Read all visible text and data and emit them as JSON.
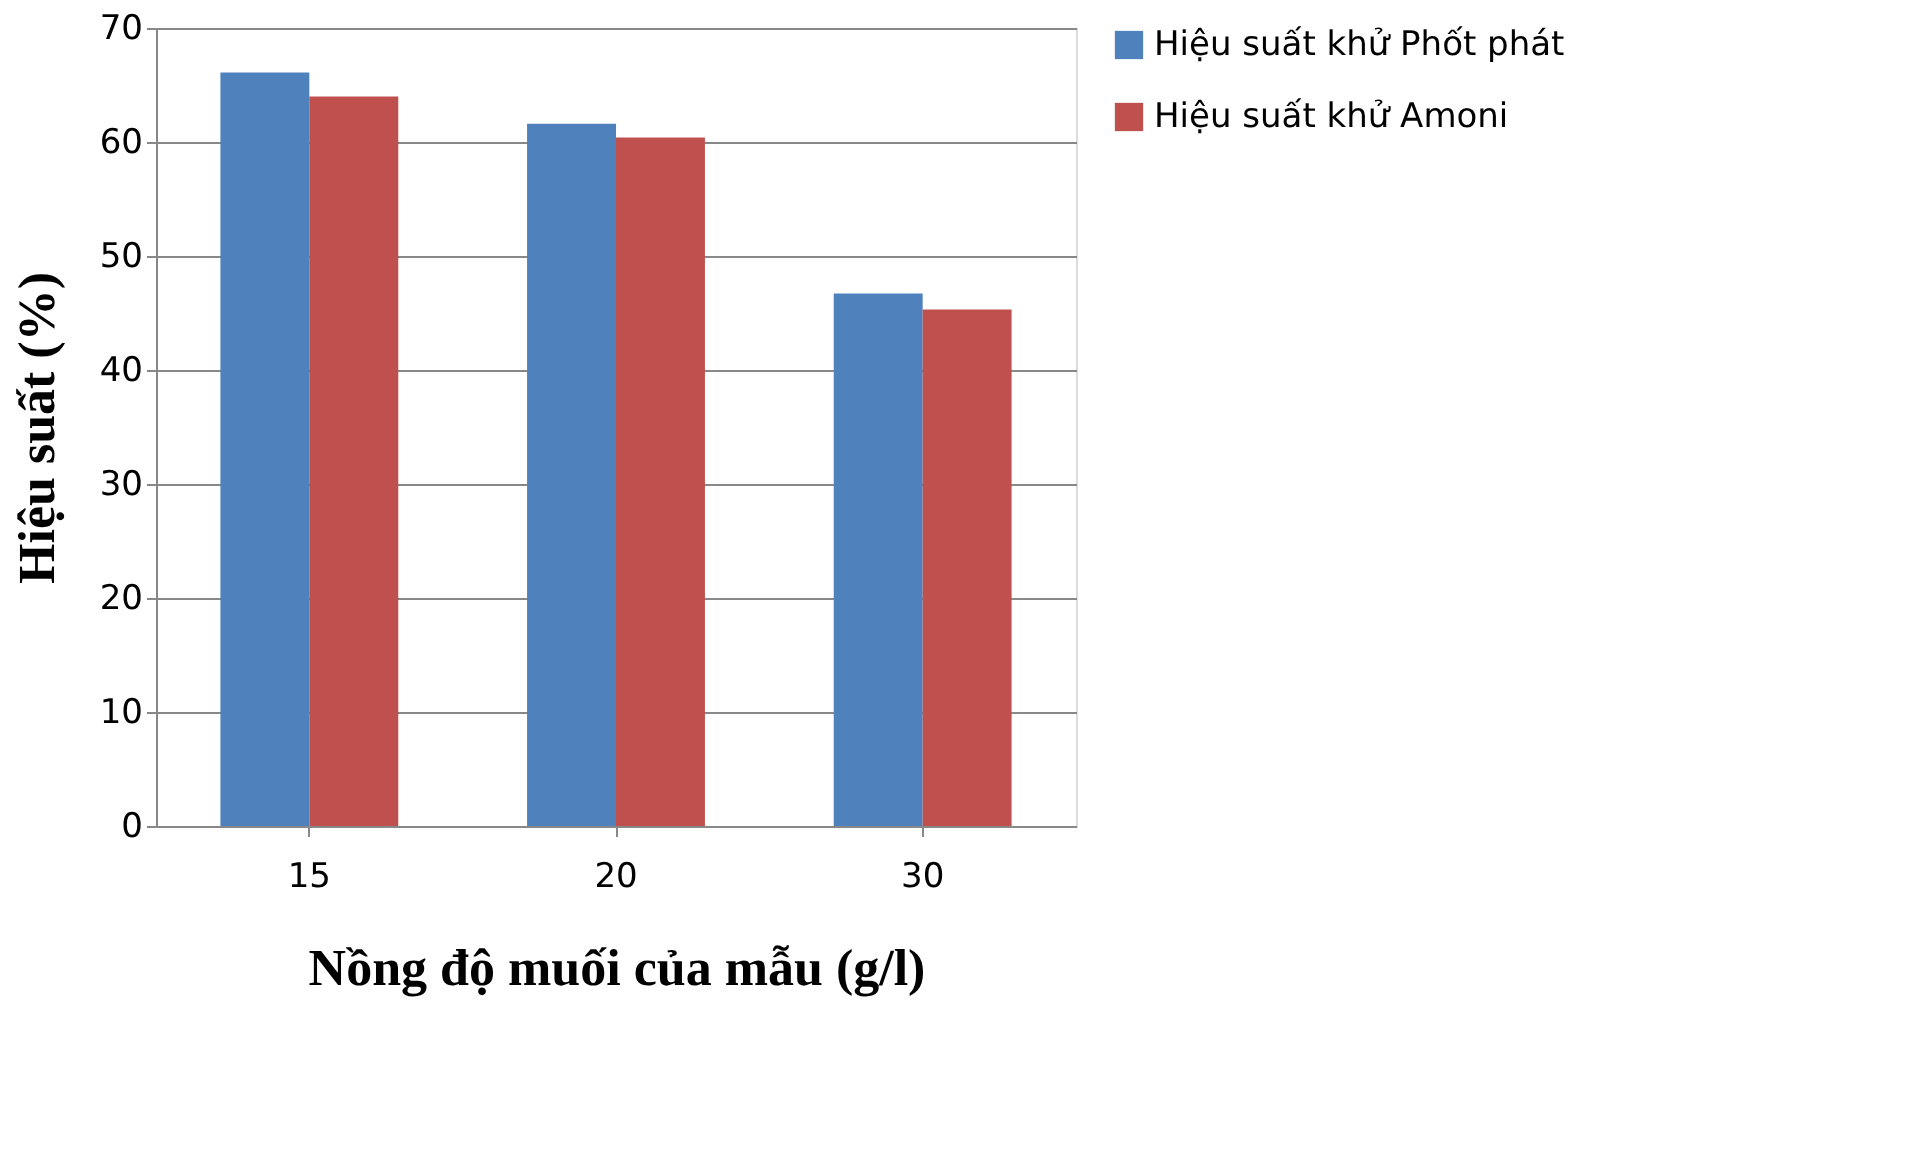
{
  "chart_data": {
    "type": "bar",
    "xlabel": "Nồng độ muối của mẫu (g/l)",
    "ylabel": "Hiệu suất (%)",
    "categories": [
      "15",
      "20",
      "30"
    ],
    "series": [
      {
        "name": "Hiệu suất khử Phốt phát",
        "color": "#4f81bd",
        "values": [
          66.1,
          61.6,
          46.7
        ]
      },
      {
        "name": "Hiệu suất khử Amoni",
        "color": "#c0504d",
        "values": [
          64.0,
          60.4,
          45.3
        ]
      }
    ],
    "ylim": [
      0,
      70
    ],
    "yticks": [
      0,
      10,
      20,
      30,
      40,
      50,
      60,
      70
    ],
    "grid": "y",
    "legend": "right"
  }
}
